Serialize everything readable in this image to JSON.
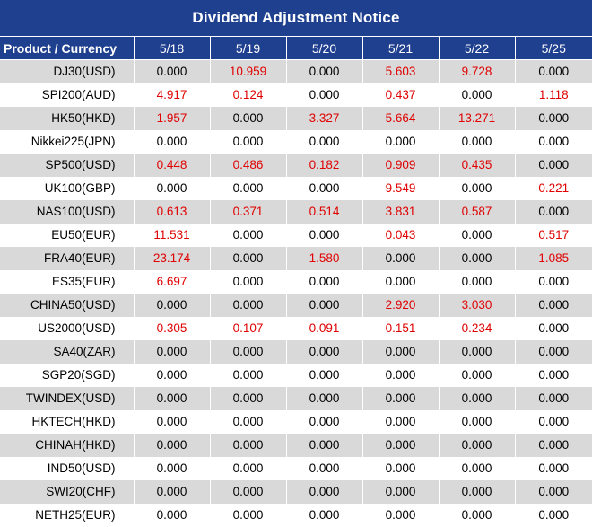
{
  "title": "Dividend Adjustment Notice",
  "header": {
    "product_label": "Product / Currency",
    "dates": [
      "5/18",
      "5/19",
      "5/20",
      "5/21",
      "5/22",
      "5/25"
    ]
  },
  "colors": {
    "header_bg": "#1f3f8f",
    "header_text": "#ffffff",
    "shaded_row": "#d9d9d9",
    "nonzero_value": "#e00000",
    "zero_value": "#000000"
  },
  "rows": [
    {
      "product": "DJ30(USD)",
      "values": [
        "0.000",
        "10.959",
        "0.000",
        "5.603",
        "9.728",
        "0.000"
      ]
    },
    {
      "product": "SPI200(AUD)",
      "values": [
        "4.917",
        "0.124",
        "0.000",
        "0.437",
        "0.000",
        "1.118"
      ]
    },
    {
      "product": "HK50(HKD)",
      "values": [
        "1.957",
        "0.000",
        "3.327",
        "5.664",
        "13.271",
        "0.000"
      ]
    },
    {
      "product": "Nikkei225(JPN)",
      "values": [
        "0.000",
        "0.000",
        "0.000",
        "0.000",
        "0.000",
        "0.000"
      ]
    },
    {
      "product": "SP500(USD)",
      "values": [
        "0.448",
        "0.486",
        "0.182",
        "0.909",
        "0.435",
        "0.000"
      ]
    },
    {
      "product": "UK100(GBP)",
      "values": [
        "0.000",
        "0.000",
        "0.000",
        "9.549",
        "0.000",
        "0.221"
      ]
    },
    {
      "product": "NAS100(USD)",
      "values": [
        "0.613",
        "0.371",
        "0.514",
        "3.831",
        "0.587",
        "0.000"
      ]
    },
    {
      "product": "EU50(EUR)",
      "values": [
        "11.531",
        "0.000",
        "0.000",
        "0.043",
        "0.000",
        "0.517"
      ]
    },
    {
      "product": "FRA40(EUR)",
      "values": [
        "23.174",
        "0.000",
        "1.580",
        "0.000",
        "0.000",
        "1.085"
      ]
    },
    {
      "product": "ES35(EUR)",
      "values": [
        "6.697",
        "0.000",
        "0.000",
        "0.000",
        "0.000",
        "0.000"
      ]
    },
    {
      "product": "CHINA50(USD)",
      "values": [
        "0.000",
        "0.000",
        "0.000",
        "2.920",
        "3.030",
        "0.000"
      ]
    },
    {
      "product": "US2000(USD)",
      "values": [
        "0.305",
        "0.107",
        "0.091",
        "0.151",
        "0.234",
        "0.000"
      ]
    },
    {
      "product": "SA40(ZAR)",
      "values": [
        "0.000",
        "0.000",
        "0.000",
        "0.000",
        "0.000",
        "0.000"
      ]
    },
    {
      "product": "SGP20(SGD)",
      "values": [
        "0.000",
        "0.000",
        "0.000",
        "0.000",
        "0.000",
        "0.000"
      ]
    },
    {
      "product": "TWINDEX(USD)",
      "values": [
        "0.000",
        "0.000",
        "0.000",
        "0.000",
        "0.000",
        "0.000"
      ]
    },
    {
      "product": "HKTECH(HKD)",
      "values": [
        "0.000",
        "0.000",
        "0.000",
        "0.000",
        "0.000",
        "0.000"
      ]
    },
    {
      "product": "CHINAH(HKD)",
      "values": [
        "0.000",
        "0.000",
        "0.000",
        "0.000",
        "0.000",
        "0.000"
      ]
    },
    {
      "product": "IND50(USD)",
      "values": [
        "0.000",
        "0.000",
        "0.000",
        "0.000",
        "0.000",
        "0.000"
      ]
    },
    {
      "product": "SWI20(CHF)",
      "values": [
        "0.000",
        "0.000",
        "0.000",
        "0.000",
        "0.000",
        "0.000"
      ]
    },
    {
      "product": "NETH25(EUR)",
      "values": [
        "0.000",
        "0.000",
        "0.000",
        "0.000",
        "0.000",
        "0.000"
      ]
    }
  ]
}
